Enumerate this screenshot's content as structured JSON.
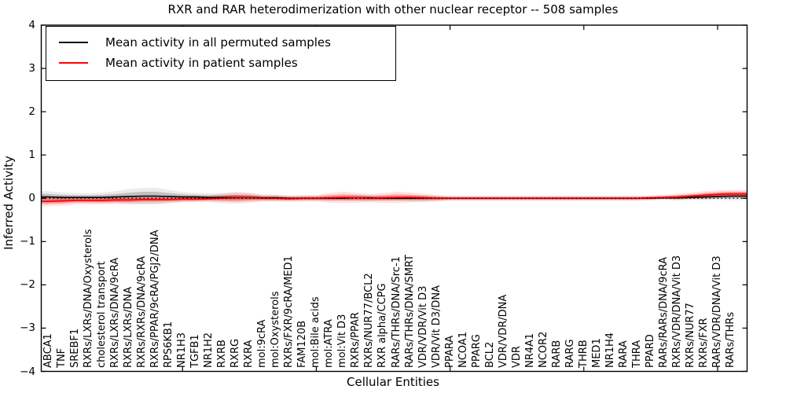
{
  "chart_data": {
    "type": "line",
    "title": "RXR and RAR heterodimerization with other nuclear receptor -- 508 samples",
    "xlabel": "Cellular Entities",
    "ylabel": "Inferred Activity",
    "ylim": [
      -4,
      4
    ],
    "yticks": [
      4,
      3,
      2,
      1,
      0,
      -1,
      -2,
      -3,
      -4
    ],
    "x_major_ticks": [
      10,
      20,
      30,
      40,
      50
    ],
    "grid": false,
    "zero_line": {
      "style": "dotted",
      "color": "#000000",
      "y": 0
    },
    "legend_position": "upper left",
    "categories": [
      "ABCA1",
      "TNF",
      "SREBF1",
      "RXRs/LXRs/DNA/Oxysterols",
      "cholesterol transport",
      "RXRs/LXRs/DNA/9cRA",
      "RXRs/LXRs/DNA",
      "RXRs/RXRs/DNA/9cRA",
      "RXRs/PPAR/9cRA/PGJ2/DNA",
      "RPS6KB1",
      "NR1H3",
      "TGFB1",
      "NR1H2",
      "RXRB",
      "RXRG",
      "RXRA",
      "mol:9cRA",
      "mol:Oxysterols",
      "RXRs/FXR/9cRA/MED1",
      "FAM120B",
      "mol:Bile acids",
      "mol:ATRA",
      "mol:Vit D3",
      "RXRs/PPAR",
      "RXRs/NUR77/BCL2",
      "RXR alpha/CCPG",
      "RARs/THRs/DNA/Src-1",
      "RARs/THRs/DNA/SMRT",
      "VDR/VDR/Vit D3",
      "VDR/Vit D3/DNA",
      "PPARA",
      "NCOA1",
      "PPARG",
      "BCL2",
      "VDR/VDR/DNA",
      "VDR",
      "NR4A1",
      "NCOR2",
      "RARB",
      "RARG",
      "THRB",
      "MED1",
      "NR1H4",
      "RARA",
      "THRA",
      "PPARD",
      "RARs/RARs/DNA/9cRA",
      "RXRs/VDR/DNA/Vit D3",
      "RXRs/NUR77",
      "RXRs/FXR",
      "RARs/VDR/DNA/Vit D3",
      "RARs/THRs"
    ],
    "series": [
      {
        "name": "Mean activity in all permuted samples",
        "color": "#000000",
        "band_color": "rgba(0,0,0,0.18)",
        "band_color_soft": "rgba(0,0,0,0.08)",
        "values": [
          0.03,
          0.02,
          0.02,
          0.02,
          0.02,
          0.03,
          0.04,
          0.05,
          0.05,
          0.04,
          0.03,
          0.03,
          0.02,
          0.02,
          0.02,
          0.02,
          0.01,
          0.01,
          0.0,
          0.0,
          0.0,
          0.0,
          0.0,
          0.01,
          0.01,
          0.0,
          0.0,
          0.0,
          0.0,
          0.0,
          0.0,
          0.0,
          0.0,
          0.0,
          0.0,
          0.0,
          0.0,
          0.0,
          0.0,
          0.0,
          0.0,
          0.0,
          0.0,
          0.0,
          0.0,
          0.0,
          0.01,
          0.01,
          0.02,
          0.03,
          0.04,
          0.05
        ],
        "band_halfwidth": [
          0.07,
          0.06,
          0.05,
          0.05,
          0.06,
          0.07,
          0.09,
          0.1,
          0.1,
          0.08,
          0.06,
          0.05,
          0.05,
          0.05,
          0.06,
          0.05,
          0.04,
          0.04,
          0.03,
          0.03,
          0.03,
          0.03,
          0.03,
          0.04,
          0.04,
          0.03,
          0.03,
          0.04,
          0.04,
          0.03,
          0.02,
          0.02,
          0.02,
          0.02,
          0.02,
          0.02,
          0.02,
          0.02,
          0.02,
          0.02,
          0.02,
          0.02,
          0.02,
          0.02,
          0.02,
          0.02,
          0.02,
          0.03,
          0.03,
          0.04,
          0.04,
          0.05
        ]
      },
      {
        "name": "Mean activity in patient samples",
        "color": "#ff0000",
        "band_color": "rgba(255,0,0,0.30)",
        "band_color_soft": "rgba(255,0,0,0.12)",
        "values": [
          -0.07,
          -0.06,
          -0.05,
          -0.05,
          -0.05,
          -0.04,
          -0.04,
          -0.03,
          -0.03,
          -0.03,
          -0.02,
          -0.02,
          -0.01,
          0.0,
          0.01,
          0.01,
          0.0,
          0.0,
          -0.01,
          0.0,
          0.0,
          0.01,
          0.02,
          0.01,
          0.0,
          0.01,
          0.02,
          0.02,
          0.01,
          0.0,
          0.0,
          0.0,
          0.0,
          0.0,
          0.0,
          0.0,
          0.0,
          0.0,
          0.0,
          0.0,
          0.0,
          0.0,
          0.0,
          0.0,
          0.0,
          0.01,
          0.02,
          0.03,
          0.05,
          0.07,
          0.09,
          0.1
        ],
        "band_halfwidth": [
          0.06,
          0.06,
          0.05,
          0.05,
          0.05,
          0.05,
          0.05,
          0.05,
          0.05,
          0.04,
          0.04,
          0.04,
          0.04,
          0.06,
          0.07,
          0.06,
          0.04,
          0.04,
          0.04,
          0.04,
          0.04,
          0.06,
          0.07,
          0.06,
          0.05,
          0.06,
          0.07,
          0.06,
          0.05,
          0.04,
          0.03,
          0.03,
          0.03,
          0.03,
          0.03,
          0.03,
          0.03,
          0.03,
          0.03,
          0.03,
          0.03,
          0.03,
          0.03,
          0.03,
          0.03,
          0.03,
          0.03,
          0.04,
          0.04,
          0.05,
          0.05,
          0.05
        ]
      }
    ]
  }
}
